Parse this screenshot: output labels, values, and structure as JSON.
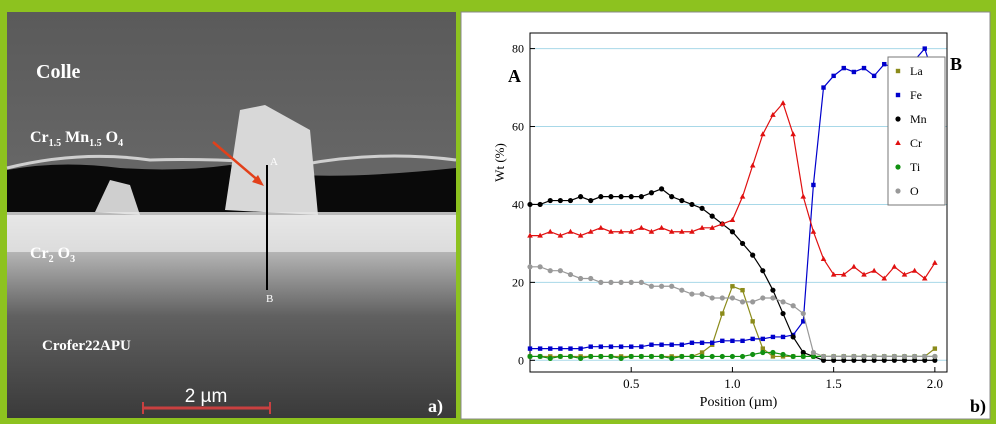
{
  "image": {
    "colle": "Colle",
    "spinel": [
      "Cr",
      "1.5",
      "Mn",
      "1.5",
      "O",
      "4"
    ],
    "chromia": [
      "Cr",
      "2",
      "O",
      "3"
    ],
    "substrate": "Crofer22APU",
    "scale": "2 µm",
    "point_a": "A",
    "point_b": "B",
    "panel": "a)"
  },
  "chart_data": {
    "type": "line",
    "panel": "b)",
    "xlabel": "Position (µm)",
    "ylabel": "Wt (%)",
    "left_marker": "A",
    "right_marker": "B",
    "x": [
      0,
      0.05,
      0.1,
      0.15,
      0.2,
      0.25,
      0.3,
      0.35,
      0.4,
      0.45,
      0.5,
      0.55,
      0.6,
      0.65,
      0.7,
      0.75,
      0.8,
      0.85,
      0.9,
      0.95,
      1,
      1.05,
      1.1,
      1.15,
      1.2,
      1.25,
      1.3,
      1.35,
      1.4,
      1.45,
      1.5,
      1.55,
      1.6,
      1.65,
      1.7,
      1.75,
      1.8,
      1.85,
      1.9,
      1.95,
      2
    ],
    "xlim": [
      0,
      2.06
    ],
    "ylim": [
      -3,
      84
    ],
    "xticks": [
      0.5,
      {
        "value": 1,
        "label": "1.0"
      },
      1.5,
      {
        "value": 2,
        "label": "2.0"
      }
    ],
    "yticks": [
      0,
      20,
      40,
      60,
      80
    ],
    "grid": true,
    "legend": "upper right",
    "series": [
      {
        "name": "La",
        "color": "#8b8b1a",
        "marker": "square",
        "values": [
          1,
          1,
          1,
          1,
          1,
          1,
          1,
          1,
          1,
          1,
          1,
          1,
          1,
          1,
          1,
          1,
          1,
          2,
          4,
          12,
          19,
          18,
          10,
          3,
          1,
          1,
          1,
          1,
          1,
          1,
          1,
          1,
          1,
          1,
          1,
          1,
          1,
          1,
          1,
          1,
          3
        ]
      },
      {
        "name": "Fe",
        "color": "#0000cc",
        "marker": "square",
        "values": [
          3,
          3,
          3,
          3,
          3,
          3,
          3.5,
          3.5,
          3.5,
          3.5,
          3.5,
          3.5,
          4,
          4,
          4,
          4,
          4.5,
          4.5,
          4.5,
          5,
          5,
          5,
          5.5,
          5.5,
          6,
          6,
          6.5,
          10,
          45,
          70,
          73,
          75,
          74,
          75,
          73,
          76,
          75,
          74,
          77,
          80,
          72
        ]
      },
      {
        "name": "Mn",
        "color": "#000000",
        "marker": "circle",
        "values": [
          40,
          40,
          41,
          41,
          41,
          42,
          41,
          42,
          42,
          42,
          42,
          42,
          43,
          44,
          42,
          41,
          40,
          39,
          37,
          35,
          33,
          30,
          27,
          23,
          18,
          12,
          6,
          2,
          1,
          0,
          0,
          0,
          0,
          0,
          0,
          0,
          0,
          0,
          0,
          0,
          0
        ]
      },
      {
        "name": "Cr",
        "color": "#e01010",
        "marker": "triangle",
        "values": [
          32,
          32,
          33,
          32,
          33,
          32,
          33,
          34,
          33,
          33,
          33,
          34,
          33,
          34,
          33,
          33,
          33,
          34,
          34,
          35,
          36,
          42,
          50,
          58,
          63,
          66,
          58,
          42,
          33,
          26,
          22,
          22,
          24,
          22,
          23,
          21,
          24,
          22,
          23,
          21,
          25
        ]
      },
      {
        "name": "Ti",
        "color": "#109010",
        "marker": "circle",
        "values": [
          1,
          1,
          0.5,
          1,
          1,
          0.5,
          1,
          1,
          1,
          0.5,
          1,
          1,
          1,
          1,
          0.5,
          1,
          1,
          1,
          1,
          1,
          1,
          1,
          1.5,
          2,
          2,
          1.5,
          1,
          1,
          1,
          1,
          1,
          1,
          1,
          1,
          1,
          1,
          1,
          1,
          1,
          1,
          1
        ]
      },
      {
        "name": "O",
        "color": "#999999",
        "marker": "circle",
        "values": [
          24,
          24,
          23,
          23,
          22,
          21,
          21,
          20,
          20,
          20,
          20,
          20,
          19,
          19,
          19,
          18,
          17,
          17,
          16,
          16,
          16,
          15,
          15,
          16,
          16,
          15,
          14,
          12,
          2,
          1,
          1,
          1,
          1,
          1,
          1,
          1,
          1,
          1,
          1,
          1,
          1
        ]
      }
    ]
  }
}
